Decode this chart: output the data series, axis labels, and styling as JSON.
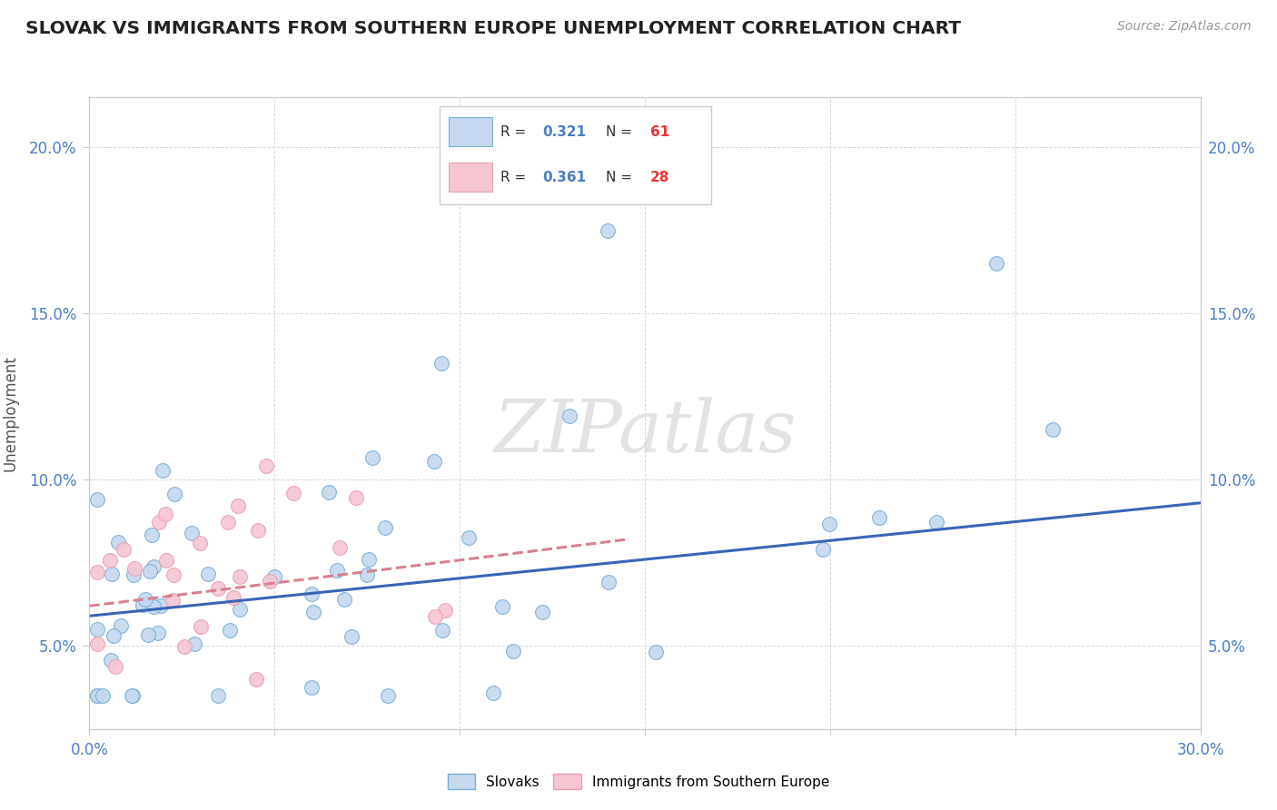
{
  "title": "SLOVAK VS IMMIGRANTS FROM SOUTHERN EUROPE UNEMPLOYMENT CORRELATION CHART",
  "source": "Source: ZipAtlas.com",
  "ylabel": "Unemployment",
  "xlim": [
    0.0,
    0.3
  ],
  "ylim": [
    0.025,
    0.215
  ],
  "xtick_positions": [
    0.0,
    0.05,
    0.1,
    0.15,
    0.2,
    0.25,
    0.3
  ],
  "xticklabels": [
    "0.0%",
    "",
    "",
    "",
    "",
    "",
    "30.0%"
  ],
  "ytick_positions": [
    0.05,
    0.1,
    0.15,
    0.2
  ],
  "yticklabels": [
    "5.0%",
    "10.0%",
    "15.0%",
    "20.0%"
  ],
  "blue_fill": "#c5d8ef",
  "blue_edge": "#7baed4",
  "pink_fill": "#f5c5d2",
  "pink_edge": "#e8a0b5",
  "blue_line_color": "#3a65b5",
  "pink_line_color": "#d88090",
  "tick_label_color": "#4a7ec7",
  "ylabel_color": "#555555",
  "grid_color": "#d8d8d8",
  "title_color": "#222222",
  "source_color": "#999999",
  "watermark_color": "#cccccc",
  "legend_border_color": "#cccccc",
  "blue_trend_x0": 0.0,
  "blue_trend_x1": 0.3,
  "blue_trend_y0": 0.059,
  "blue_trend_y1": 0.093,
  "pink_trend_x0": 0.0,
  "pink_trend_x1": 0.145,
  "pink_trend_y0": 0.062,
  "pink_trend_y1": 0.082,
  "blue_n": 61,
  "pink_n": 28,
  "blue_r": "0.321",
  "pink_r": "0.361",
  "r_text_color": "#4a7ec7",
  "n_text_color": "#ee3333"
}
